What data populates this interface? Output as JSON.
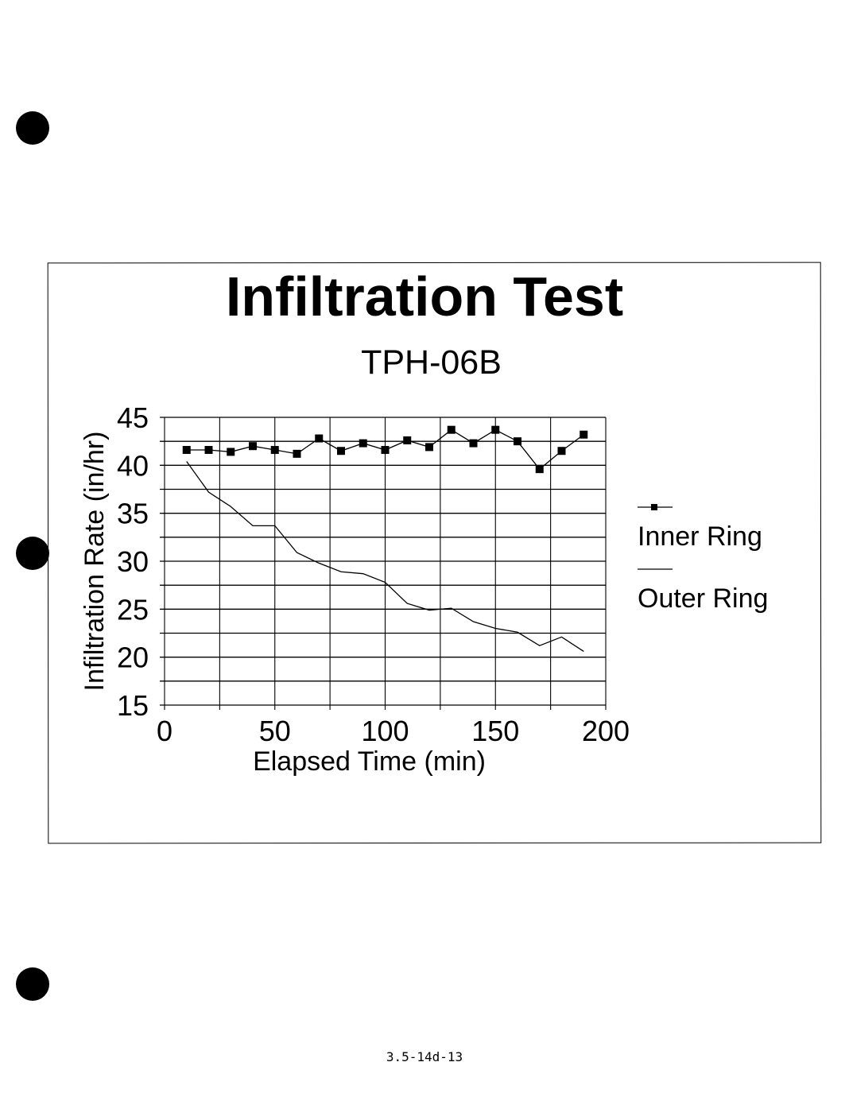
{
  "chart_data": {
    "type": "line",
    "title": "Infiltration Test",
    "subtitle": "TPH-06B",
    "xlabel": "Elapsed Time (min)",
    "ylabel": "Infiltration Rate (in/hr)",
    "xlim": [
      0,
      200
    ],
    "ylim": [
      15,
      45
    ],
    "xticks": [
      "0",
      "50",
      "100",
      "150",
      "200"
    ],
    "yticks": [
      "15",
      "20",
      "25",
      "30",
      "35",
      "40",
      "45"
    ],
    "grid": true,
    "legend_position": "right",
    "x": [
      10,
      20,
      30,
      40,
      50,
      60,
      70,
      80,
      90,
      100,
      110,
      120,
      130,
      140,
      150,
      160,
      170,
      180,
      190
    ],
    "series": [
      {
        "name": "Inner Ring",
        "marker": "square",
        "values": [
          41.6,
          41.6,
          41.4,
          42.0,
          41.6,
          41.2,
          42.8,
          41.5,
          42.3,
          41.6,
          42.6,
          41.9,
          43.7,
          42.3,
          43.7,
          42.5,
          39.6,
          41.5,
          43.2
        ]
      },
      {
        "name": "Outer Ring",
        "marker": "none",
        "values": [
          40.4,
          37.2,
          35.7,
          33.7,
          33.7,
          30.9,
          29.8,
          28.9,
          28.7,
          27.8,
          25.6,
          24.9,
          25.1,
          23.7,
          23.0,
          22.6,
          21.2,
          22.1,
          20.6
        ]
      }
    ]
  },
  "footer": "3.5-14d-13"
}
